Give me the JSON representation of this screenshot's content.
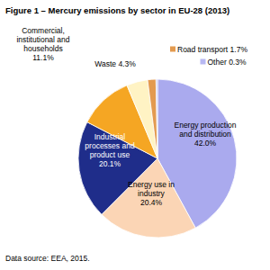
{
  "chart_data": {
    "type": "pie",
    "title": "Figure 1 – Mercury emissions by sector in EU-28 (2013)",
    "categories": [
      "Energy production and distribution",
      "Energy use in industry",
      "Industrial processes and product use",
      "Commercial, institutional and households",
      "Waste",
      "Road transport",
      "Other"
    ],
    "values": [
      42.0,
      20.4,
      20.1,
      11.1,
      4.3,
      1.7,
      0.3
    ],
    "value_labels": [
      "42.0%",
      "20.4%",
      "20.1%",
      "11.1%",
      "4.3%",
      "1.7%",
      "0.3%"
    ],
    "colors": [
      "#aaaaee",
      "#fbd5b5",
      "#1f2d8a",
      "#f5a623",
      "#fff3c4",
      "#e39a4f",
      "#b8b8f2"
    ],
    "data_labels": true,
    "source": "Data source: EEA, 2015."
  }
}
